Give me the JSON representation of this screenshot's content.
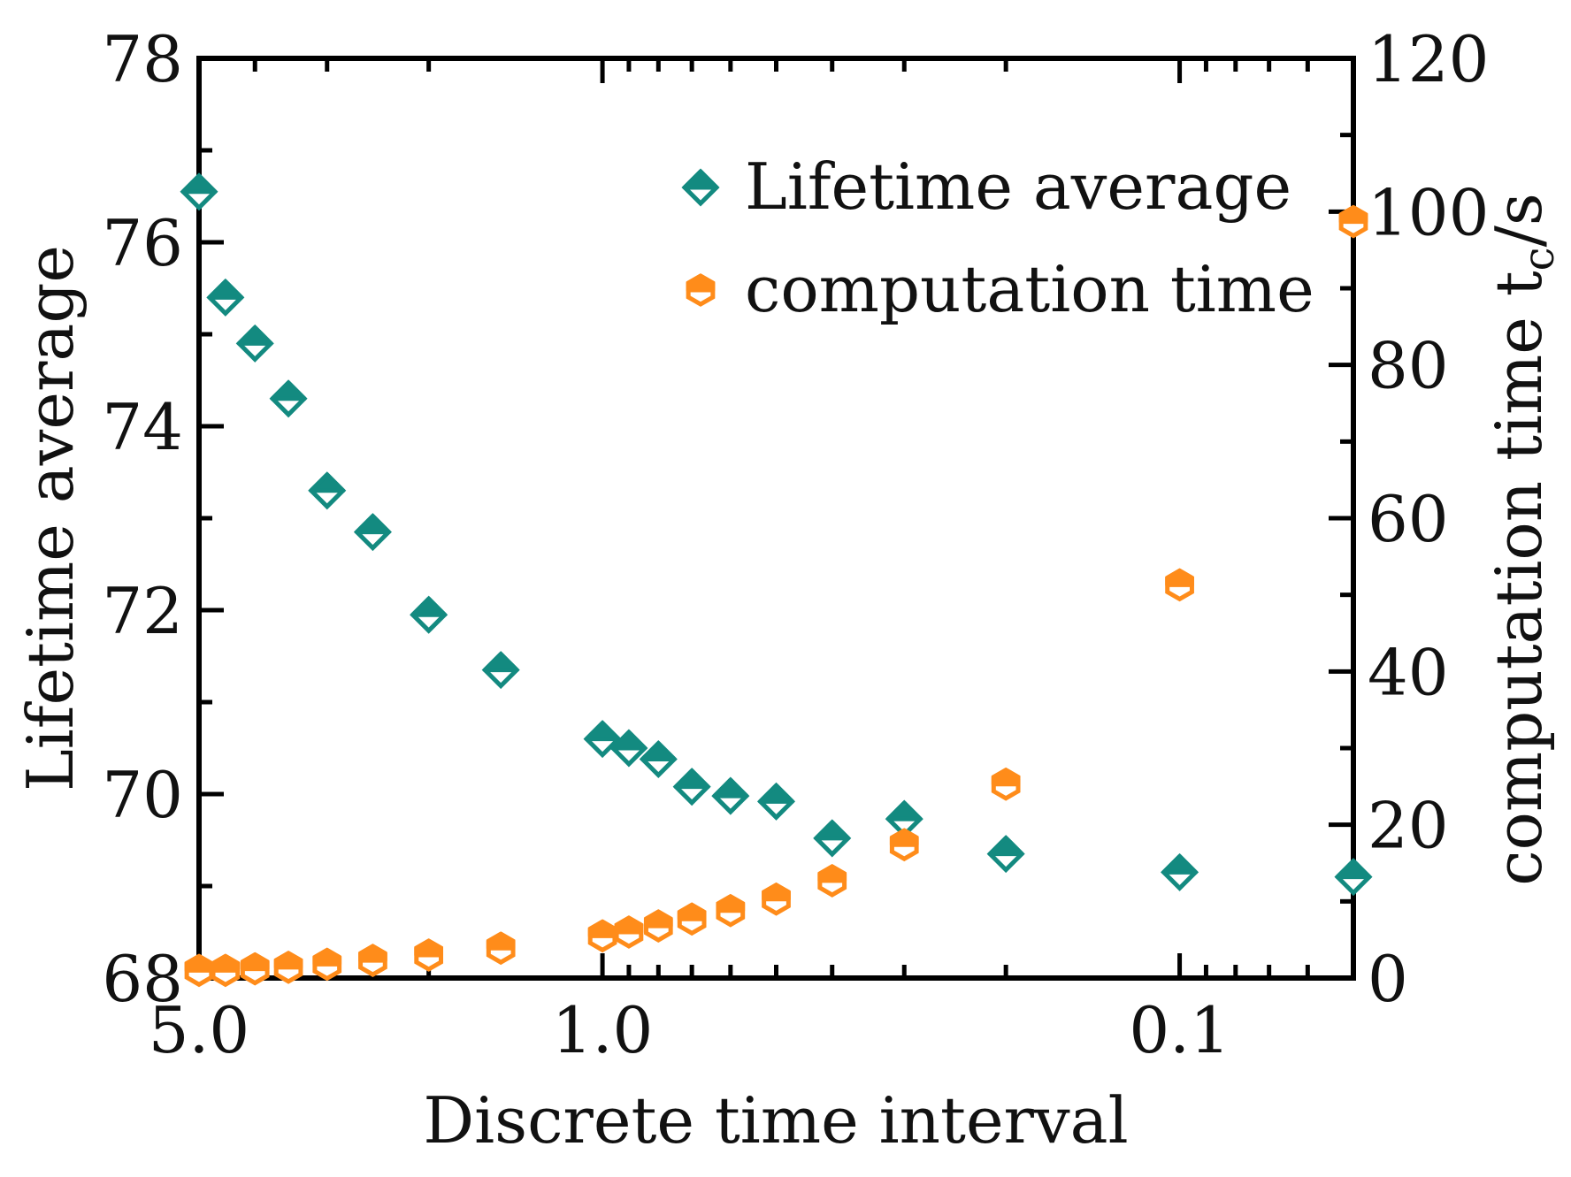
{
  "colors": {
    "lifetime": "#138a80",
    "computation": "#ff8c1a",
    "axis": "#000000"
  },
  "chart_data": {
    "type": "scatter",
    "title": "",
    "xlabel": "Discrete time interval",
    "ylabel_left": "Lifetime average",
    "ylabel_right_main": "computation time t",
    "ylabel_right_sub": "c",
    "ylabel_right_tail": "/s",
    "x_scale": "log",
    "x_reversed": true,
    "xlim": [
      5.0,
      0.05
    ],
    "ylim_left": [
      68,
      78
    ],
    "ylim_right": [
      0,
      120
    ],
    "x_ticks": [
      {
        "value": 5.0,
        "label": "5.0"
      },
      {
        "value": 1.0,
        "label": "1.0"
      },
      {
        "value": 0.1,
        "label": "0.1"
      }
    ],
    "y_left_ticks": [
      68,
      70,
      72,
      74,
      76,
      78
    ],
    "y_right_ticks": [
      0,
      20,
      40,
      60,
      80,
      100,
      120
    ],
    "legend": {
      "position": "top-right",
      "entries": [
        "Lifetime average",
        "computation time"
      ]
    },
    "series": [
      {
        "name": "Lifetime average",
        "axis": "left",
        "marker": "diamond",
        "x": [
          5.0,
          4.5,
          4.0,
          3.5,
          3.0,
          2.5,
          2.0,
          1.5,
          1.0,
          0.9,
          0.8,
          0.7,
          0.6,
          0.5,
          0.4,
          0.3,
          0.2,
          0.1,
          0.05
        ],
        "y": [
          76.55,
          75.4,
          74.9,
          74.3,
          73.3,
          72.85,
          71.95,
          71.35,
          70.6,
          70.5,
          70.38,
          70.08,
          69.98,
          69.92,
          69.52,
          69.73,
          69.35,
          69.15,
          69.1
        ]
      },
      {
        "name": "computation time",
        "axis": "right",
        "marker": "hexagon",
        "x": [
          5.0,
          4.5,
          4.0,
          3.5,
          3.0,
          2.5,
          2.0,
          1.5,
          1.0,
          0.9,
          0.8,
          0.7,
          0.6,
          0.5,
          0.4,
          0.3,
          0.2,
          0.1,
          0.05
        ],
        "y": [
          1.0,
          1.0,
          1.2,
          1.4,
          1.8,
          2.3,
          3.0,
          3.9,
          5.5,
          6.0,
          6.8,
          7.7,
          8.8,
          10.3,
          12.7,
          17.4,
          25.3,
          51.3,
          98.7
        ]
      }
    ]
  }
}
